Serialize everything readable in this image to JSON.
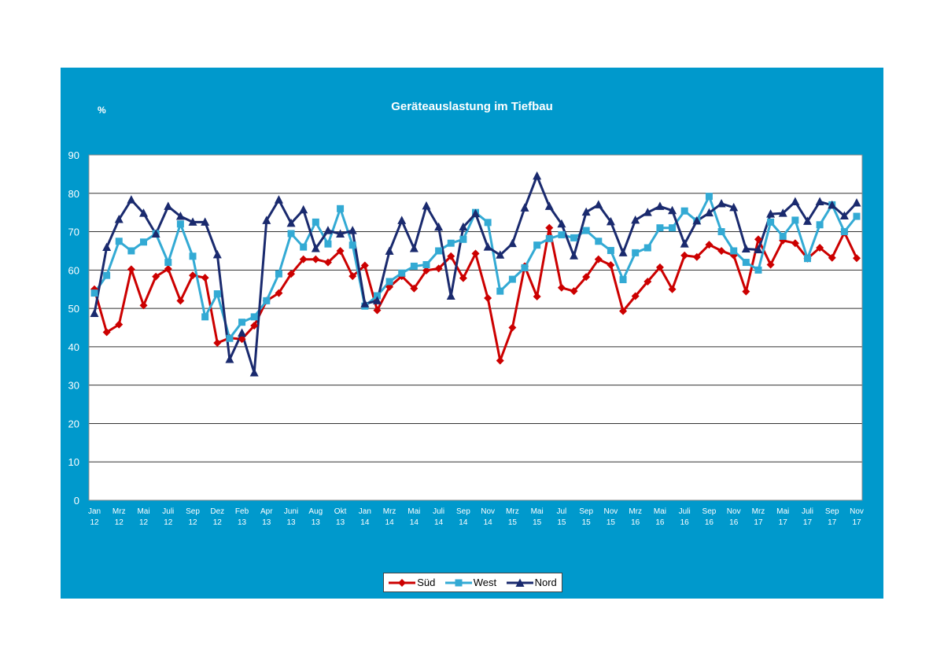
{
  "chart_data": {
    "type": "line",
    "title": "Geräteauslastung im Tiefbau",
    "ylabel": "%",
    "xlabel": "",
    "ylim": [
      0,
      90
    ],
    "yticks": [
      0,
      10,
      20,
      30,
      40,
      50,
      60,
      70,
      80,
      90
    ],
    "grid": true,
    "legend_position": "bottom",
    "tick_labels": [
      [
        "Jan",
        "12"
      ],
      [
        "Mrz",
        "12"
      ],
      [
        "Mai",
        "12"
      ],
      [
        "Juli",
        "12"
      ],
      [
        "Sep",
        "12"
      ],
      [
        "Dez",
        "12"
      ],
      [
        "Feb",
        "13"
      ],
      [
        "Apr",
        "13"
      ],
      [
        "Juni",
        "13"
      ],
      [
        "Aug",
        "13"
      ],
      [
        "Okt",
        "13"
      ],
      [
        "Jan",
        "14"
      ],
      [
        "Mrz",
        "14"
      ],
      [
        "Mai",
        "14"
      ],
      [
        "Juli",
        "14"
      ],
      [
        "Sep",
        "14"
      ],
      [
        "Nov",
        "14"
      ],
      [
        "Mrz",
        "15"
      ],
      [
        "Mai",
        "15"
      ],
      [
        "Jul",
        "15"
      ],
      [
        "Sep",
        "15"
      ],
      [
        "Nov",
        "15"
      ],
      [
        "Mrz",
        "16"
      ],
      [
        "Mai",
        "16"
      ],
      [
        "Juli",
        "16"
      ],
      [
        "Sep",
        "16"
      ],
      [
        "Nov",
        "16"
      ],
      [
        "Mrz",
        "17"
      ],
      [
        "Mai",
        "17"
      ],
      [
        "Juli",
        "17"
      ],
      [
        "Sep",
        "17"
      ],
      [
        "Nov",
        "17"
      ]
    ],
    "series": [
      {
        "name": "Süd",
        "color": "#cc0000",
        "marker": "diamond",
        "values": [
          55,
          43.8,
          45.8,
          60.2,
          50.8,
          58.3,
          60.3,
          52,
          58.6,
          58,
          41,
          42.3,
          42,
          45.5,
          52,
          54,
          59,
          62.8,
          62.8,
          62,
          65,
          58.4,
          61.2,
          49.5,
          55.6,
          58.4,
          55.2,
          59.9,
          60.4,
          63.6,
          57.9,
          64.3,
          52.7,
          36.4,
          45,
          61,
          53.1,
          71,
          55.4,
          54.5,
          58.2,
          62.8,
          61.3,
          49.3,
          53.2,
          57,
          60.7,
          55,
          63.8,
          63.4,
          66.6,
          65,
          63.8,
          54.4,
          68,
          61.4,
          67.7,
          67,
          63,
          65.8,
          63.2,
          69.8,
          63.1
        ]
      },
      {
        "name": "West",
        "color": "#33aad4",
        "marker": "square",
        "values": [
          54,
          58.6,
          67.5,
          65,
          67.3,
          69.5,
          62,
          72,
          63.6,
          47.8,
          53.8,
          42.2,
          46.4,
          47.8,
          52,
          59,
          69.5,
          66,
          72.5,
          66.8,
          76,
          66.5,
          50.6,
          53.3,
          57,
          59.2,
          61,
          61.4,
          65,
          67,
          68,
          75,
          72.4,
          54.5,
          57.6,
          60.6,
          66.5,
          68.2,
          69.2,
          68.4,
          70.3,
          67.5,
          65.1,
          57.5,
          64.5,
          65.8,
          71,
          71,
          75.4,
          72.8,
          79.2,
          70,
          65,
          62,
          60,
          72.5,
          68.8,
          73,
          63,
          71.8,
          77,
          70,
          74
        ]
      },
      {
        "name": "Nord",
        "color": "#1a2a6e",
        "marker": "triangle",
        "values": [
          48.7,
          65.9,
          73.2,
          78.3,
          74.8,
          69.4,
          76.6,
          74,
          72.5,
          72.5,
          64,
          36.7,
          43.6,
          33.2,
          72.9,
          78.3,
          72.2,
          75.7,
          65.6,
          70.3,
          69.4,
          70.3,
          51.2,
          52,
          64.9,
          72.9,
          65.6,
          76.7,
          71.2,
          53.2,
          71.2,
          74.7,
          66,
          63.9,
          66.9,
          76.2,
          84.5,
          76.6,
          72,
          63.7,
          75.1,
          77,
          72.6,
          64.5,
          73,
          75,
          76.6,
          75.5,
          66.8,
          72.8,
          74.9,
          77.3,
          76.3,
          65.5,
          65.3,
          74.6,
          74.8,
          77.8,
          72.7,
          77.8,
          76.9,
          74.1,
          77.5
        ]
      }
    ]
  }
}
